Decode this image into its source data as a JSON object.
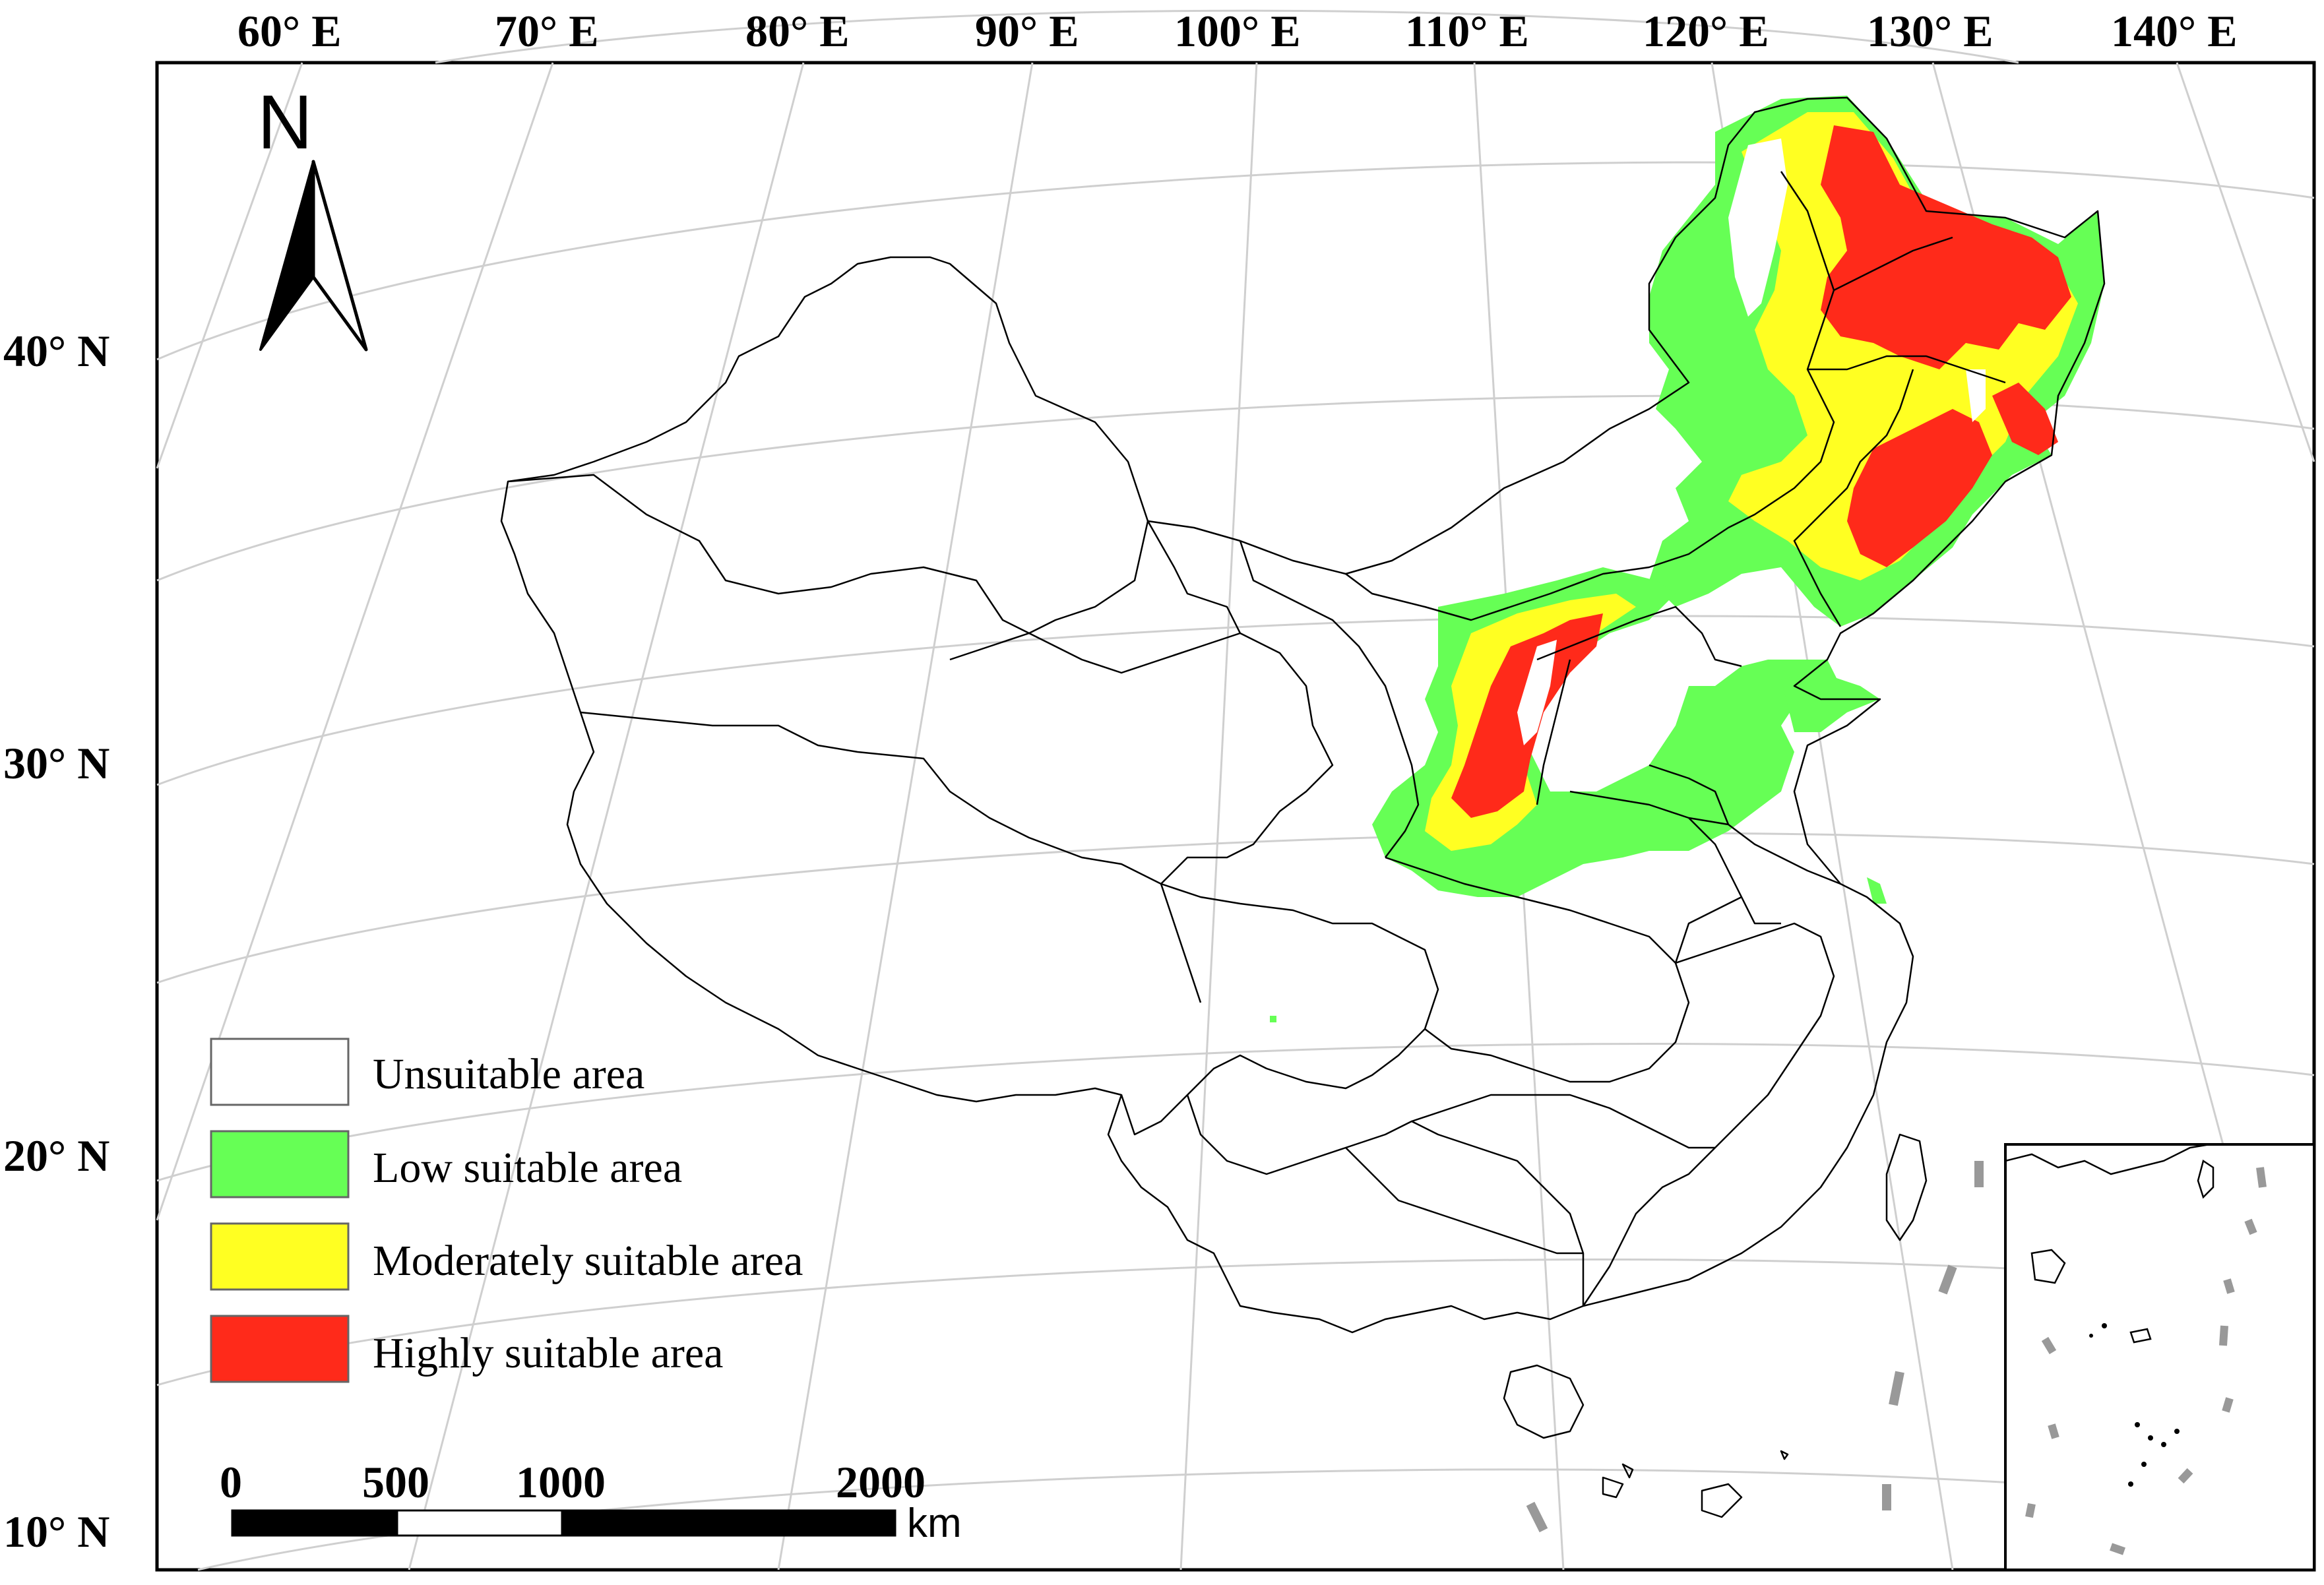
{
  "longitude_labels": [
    "60° E",
    "70° E",
    "80° E",
    "90° E",
    "100° E",
    "110° E",
    "120° E",
    "130° E",
    "140° E"
  ],
  "latitude_labels": [
    "40° N",
    "30° N",
    "20° N",
    "10° N"
  ],
  "north_arrow": {
    "label": "N",
    "icon": "north-arrow-icon"
  },
  "legend": {
    "items": [
      {
        "label": "Unsuitable area",
        "color": "#ffffff"
      },
      {
        "label": "Low suitable area",
        "color": "#66ff55"
      },
      {
        "label": "Moderately suitable area",
        "color": "#ffff22"
      },
      {
        "label": "Highly suitable area",
        "color": "#ff2a1a"
      }
    ]
  },
  "scale_bar": {
    "ticks": [
      "0",
      "500",
      "1000",
      "2000"
    ],
    "unit": "km"
  },
  "colors": {
    "boundary": "#000000",
    "graticule": "#cfcfcf",
    "low": "#66ff55",
    "moderate": "#ffff22",
    "high": "#ff2a1a",
    "dashed_line": "#999999"
  }
}
